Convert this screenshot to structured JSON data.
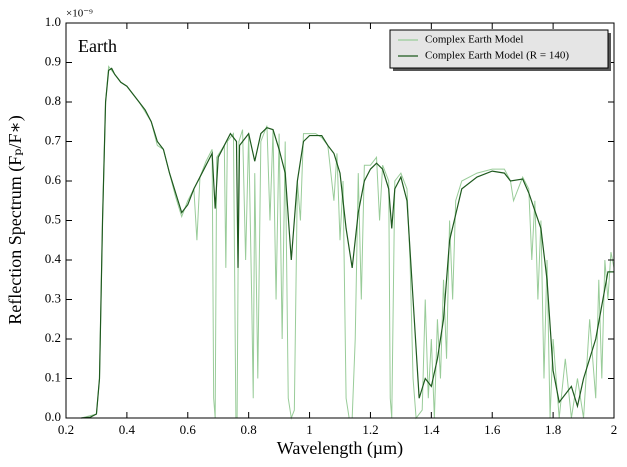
{
  "chart_data": {
    "type": "line",
    "annotation": "Earth",
    "y_offset_label": "×10⁻⁹",
    "xlabel": "Wavelength (µm)",
    "ylabel": "Reflection Spectrum (Fₚ/F∗)",
    "xlim": [
      0.2,
      2
    ],
    "ylim": [
      0,
      1
    ],
    "xticks": [
      0.2,
      0.4,
      0.6,
      0.8,
      1,
      1.2,
      1.4,
      1.6,
      1.8,
      2
    ],
    "yticks": [
      {
        "value": 0,
        "label": "0.0"
      },
      0.1,
      0.2,
      0.3,
      0.4,
      0.5,
      0.6,
      0.7,
      0.8,
      0.9,
      {
        "value": 1,
        "label": "1.0"
      }
    ],
    "legend": "upper right",
    "series": [
      {
        "name": "Complex Earth Model",
        "color": "#99cc99",
        "x": [
          0.25,
          0.3,
          0.31,
          0.32,
          0.33,
          0.34,
          0.35,
          0.36,
          0.38,
          0.4,
          0.44,
          0.48,
          0.5,
          0.52,
          0.54,
          0.56,
          0.58,
          0.6,
          0.62,
          0.63,
          0.64,
          0.66,
          0.68,
          0.685,
          0.69,
          0.695,
          0.72,
          0.725,
          0.73,
          0.75,
          0.758,
          0.762,
          0.768,
          0.78,
          0.79,
          0.8,
          0.81,
          0.815,
          0.82,
          0.83,
          0.84,
          0.86,
          0.87,
          0.88,
          0.89,
          0.9,
          0.91,
          0.92,
          0.93,
          0.94,
          0.95,
          0.96,
          0.97,
          0.98,
          1.0,
          1.02,
          1.04,
          1.06,
          1.08,
          1.09,
          1.1,
          1.11,
          1.12,
          1.13,
          1.14,
          1.15,
          1.16,
          1.17,
          1.18,
          1.2,
          1.22,
          1.23,
          1.24,
          1.26,
          1.265,
          1.27,
          1.28,
          1.3,
          1.32,
          1.33,
          1.34,
          1.35,
          1.37,
          1.38,
          1.39,
          1.4,
          1.41,
          1.42,
          1.43,
          1.44,
          1.45,
          1.46,
          1.47,
          1.48,
          1.5,
          1.55,
          1.6,
          1.64,
          1.66,
          1.67,
          1.7,
          1.72,
          1.73,
          1.74,
          1.75,
          1.76,
          1.77,
          1.78,
          1.79,
          1.8,
          1.82,
          1.84,
          1.86,
          1.88,
          1.9,
          1.92,
          1.94,
          1.95,
          1.96,
          1.97,
          1.98,
          1.99,
          2.0
        ],
        "values": [
          0,
          0.01,
          0.1,
          0.5,
          0.8,
          0.89,
          0.88,
          0.87,
          0.85,
          0.84,
          0.8,
          0.75,
          0.69,
          0.68,
          0.62,
          0.56,
          0.51,
          0.55,
          0.58,
          0.45,
          0.61,
          0.65,
          0.68,
          0.05,
          0,
          0.66,
          0.69,
          0.38,
          0.7,
          0.72,
          0,
          0,
          0.7,
          0.73,
          0.4,
          0.72,
          0.3,
          0.05,
          0.62,
          0.1,
          0.7,
          0.74,
          0.5,
          0.73,
          0.3,
          0.72,
          0.2,
          0.7,
          0.05,
          0,
          0.02,
          0.6,
          0.5,
          0.72,
          0.72,
          0.72,
          0.71,
          0.69,
          0.55,
          0.67,
          0.45,
          0.6,
          0.05,
          0,
          0,
          0.2,
          0.62,
          0.3,
          0.64,
          0.64,
          0.66,
          0.5,
          0.64,
          0.6,
          0.05,
          0,
          0.6,
          0.62,
          0.58,
          0.4,
          0.1,
          0,
          0.02,
          0.3,
          0.05,
          0.2,
          0,
          0.25,
          0.1,
          0.35,
          0.15,
          0.5,
          0.3,
          0.55,
          0.6,
          0.62,
          0.63,
          0.63,
          0.6,
          0.55,
          0.61,
          0.58,
          0.4,
          0.55,
          0.3,
          0.5,
          0.1,
          0.4,
          0,
          0.2,
          0,
          0.15,
          0,
          0.1,
          0,
          0.25,
          0.05,
          0.35,
          0.1,
          0.4,
          0.3,
          0.42,
          0.38
        ]
      },
      {
        "name": "Complex Earth Model (R = 140)",
        "color": "#1f5a1f",
        "x": [
          0.25,
          0.28,
          0.3,
          0.31,
          0.32,
          0.33,
          0.34,
          0.35,
          0.36,
          0.37,
          0.38,
          0.4,
          0.42,
          0.44,
          0.46,
          0.48,
          0.5,
          0.52,
          0.54,
          0.56,
          0.58,
          0.6,
          0.62,
          0.64,
          0.66,
          0.68,
          0.69,
          0.7,
          0.72,
          0.74,
          0.76,
          0.765,
          0.77,
          0.8,
          0.82,
          0.84,
          0.86,
          0.88,
          0.9,
          0.92,
          0.94,
          0.96,
          0.98,
          1.0,
          1.04,
          1.06,
          1.08,
          1.1,
          1.12,
          1.14,
          1.16,
          1.18,
          1.2,
          1.22,
          1.24,
          1.26,
          1.27,
          1.28,
          1.3,
          1.32,
          1.34,
          1.36,
          1.38,
          1.4,
          1.42,
          1.44,
          1.46,
          1.5,
          1.55,
          1.6,
          1.64,
          1.66,
          1.7,
          1.72,
          1.76,
          1.78,
          1.8,
          1.82,
          1.86,
          1.88,
          1.9,
          1.94,
          1.98,
          2.0
        ],
        "values": [
          0,
          0.002,
          0.01,
          0.1,
          0.5,
          0.8,
          0.88,
          0.885,
          0.87,
          0.86,
          0.85,
          0.84,
          0.82,
          0.8,
          0.78,
          0.75,
          0.7,
          0.68,
          0.62,
          0.57,
          0.52,
          0.54,
          0.58,
          0.61,
          0.64,
          0.67,
          0.53,
          0.66,
          0.69,
          0.72,
          0.7,
          0.38,
          0.69,
          0.72,
          0.65,
          0.72,
          0.735,
          0.73,
          0.68,
          0.62,
          0.4,
          0.6,
          0.7,
          0.715,
          0.715,
          0.69,
          0.67,
          0.62,
          0.48,
          0.38,
          0.52,
          0.6,
          0.63,
          0.645,
          0.63,
          0.58,
          0.48,
          0.58,
          0.61,
          0.55,
          0.3,
          0.05,
          0.1,
          0.08,
          0.15,
          0.25,
          0.45,
          0.58,
          0.61,
          0.625,
          0.62,
          0.6,
          0.605,
          0.57,
          0.48,
          0.35,
          0.12,
          0.04,
          0.08,
          0.03,
          0.1,
          0.2,
          0.37,
          0.37
        ]
      }
    ]
  }
}
